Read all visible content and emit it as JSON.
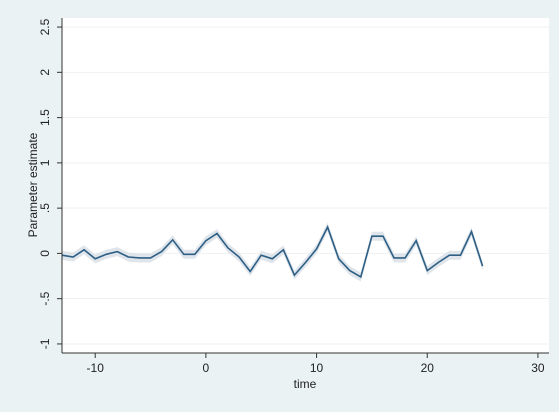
{
  "chart_data": {
    "type": "line",
    "xlabel": "time",
    "ylabel": "Parameter estimate",
    "xlim": [
      -13,
      31
    ],
    "ylim": [
      -1.1,
      2.6
    ],
    "x_ticks": [
      -10,
      0,
      10,
      20,
      30
    ],
    "x_tick_labels": [
      "-10",
      "0",
      "10",
      "20",
      "30"
    ],
    "y_ticks": [
      -1,
      -0.5,
      0,
      0.5,
      1,
      1.5,
      2,
      2.5
    ],
    "y_tick_labels": [
      "-1",
      "-.5",
      "0",
      ".5",
      "1",
      "1.5",
      "2",
      "2.5"
    ],
    "grid": "horizontal",
    "colors": {
      "background": "#eaf2f3",
      "plot_area": "#ffffff",
      "line": "#2e5f85",
      "band": "#dfe5ea",
      "grid": "#eef1f3"
    },
    "series": [
      {
        "x": [
          -13,
          -12,
          -11,
          -10,
          -9,
          -8,
          -7,
          -6,
          -5,
          -4,
          -3,
          -2,
          -1,
          0,
          1,
          2,
          3,
          4,
          5,
          6,
          7,
          8,
          9,
          10,
          11,
          12,
          13,
          14,
          15,
          16,
          17,
          18,
          19,
          20,
          21,
          22,
          23,
          24,
          25
        ],
        "y": [
          -0.02,
          -0.04,
          0.04,
          -0.06,
          -0.01,
          0.02,
          -0.04,
          -0.05,
          -0.05,
          0.02,
          0.15,
          -0.01,
          -0.01,
          0.14,
          0.22,
          0.06,
          -0.04,
          -0.2,
          -0.02,
          -0.06,
          0.04,
          -0.24,
          -0.1,
          0.05,
          0.29,
          -0.06,
          -0.19,
          -0.26,
          0.19,
          0.19,
          -0.05,
          -0.05,
          0.14,
          -0.19,
          -0.1,
          -0.02,
          -0.02,
          0.24,
          -0.14
        ],
        "ci_halfwidth": 0.05
      }
    ]
  }
}
